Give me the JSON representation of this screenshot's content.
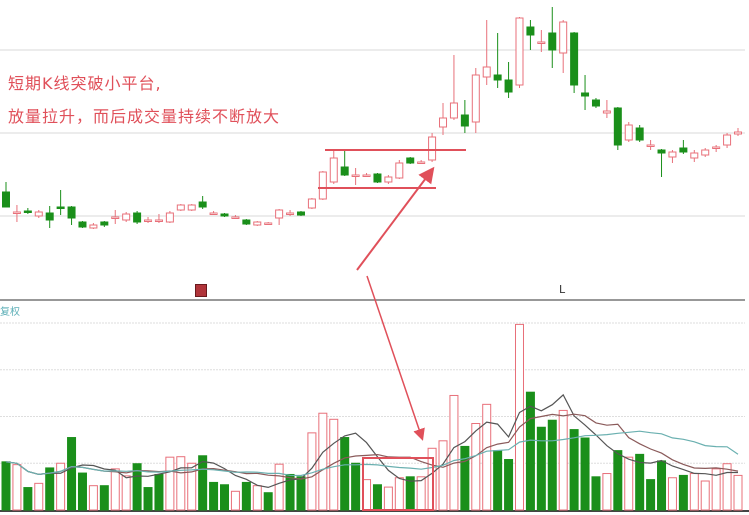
{
  "annotation": {
    "line1": "短期K线突破小平台,",
    "line2": "放量拉升，而后成交量持续不断放大"
  },
  "markers": {
    "right_label": "L"
  },
  "volume_panel_label": "复权",
  "colors": {
    "up": "#e8707a",
    "down": "#1a8f1a",
    "annotation": "#e0505a",
    "ma5": "#555555",
    "ma10": "#8a5a5a",
    "ma20": "#6ab0b0"
  },
  "chart_data": [
    {
      "type": "candlestick",
      "ylim": [
        0,
        30
      ],
      "grid": true,
      "candles": [
        [
          10.8,
          9.3,
          11.8,
          9.3
        ],
        [
          8.7,
          8.8,
          9.5,
          7.8
        ],
        [
          8.9,
          8.8,
          9.2,
          8.6
        ],
        [
          8.4,
          8.8,
          9.0,
          8.2
        ],
        [
          8.7,
          8.0,
          9.4,
          7.2
        ],
        [
          9.3,
          9.2,
          11.0,
          8.5
        ],
        [
          9.3,
          8.2,
          9.4,
          7.5
        ],
        [
          7.8,
          7.3,
          7.9,
          7.2
        ],
        [
          7.2,
          7.5,
          7.7,
          7.1
        ],
        [
          7.8,
          7.5,
          7.9,
          7.3
        ],
        [
          8.3,
          8.3,
          9.0,
          7.6
        ],
        [
          8.0,
          8.6,
          8.8,
          7.8
        ],
        [
          8.7,
          7.8,
          8.9,
          7.6
        ],
        [
          8.0,
          8.0,
          8.3,
          7.7
        ],
        [
          7.9,
          8.0,
          8.6,
          7.7
        ],
        [
          7.8,
          8.7,
          8.9,
          7.7
        ],
        [
          9.0,
          9.5,
          9.6,
          8.9
        ],
        [
          9.0,
          9.5,
          9.6,
          8.9
        ],
        [
          9.8,
          9.3,
          10.4,
          9.1
        ],
        [
          8.7,
          8.7,
          8.9,
          8.5
        ],
        [
          8.6,
          8.4,
          8.7,
          8.3
        ],
        [
          8.3,
          8.3,
          8.5,
          8.1
        ],
        [
          8.0,
          7.6,
          8.1,
          7.5
        ],
        [
          7.5,
          7.8,
          7.9,
          7.4
        ],
        [
          7.7,
          7.7,
          7.8,
          7.5
        ],
        [
          8.2,
          9.0,
          9.1,
          7.5
        ],
        [
          8.7,
          8.7,
          9.0,
          8.4
        ],
        [
          8.8,
          8.5,
          8.9,
          8.4
        ],
        [
          9.2,
          10.1,
          10.2,
          9.1
        ],
        [
          10.1,
          12.8,
          12.9,
          10.0
        ],
        [
          11.8,
          14.2,
          15.0,
          11.6
        ],
        [
          13.3,
          12.5,
          15.0,
          12.4
        ],
        [
          12.5,
          12.5,
          13.2,
          11.5
        ],
        [
          12.5,
          12.5,
          12.7,
          12.3
        ],
        [
          12.6,
          11.8,
          12.7,
          11.7
        ],
        [
          11.8,
          12.3,
          12.5,
          11.6
        ],
        [
          12.2,
          13.7,
          14.0,
          12.1
        ],
        [
          14.2,
          13.7,
          14.3,
          13.6
        ],
        [
          13.8,
          13.8,
          14.0,
          13.6
        ],
        [
          14.0,
          16.3,
          16.7,
          13.8
        ],
        [
          17.3,
          18.2,
          19.7,
          16.5
        ],
        [
          18.2,
          19.7,
          24.5,
          18.0
        ],
        [
          18.5,
          17.4,
          20.0,
          16.7
        ],
        [
          17.8,
          22.5,
          23.2,
          16.7
        ],
        [
          22.3,
          23.3,
          28.0,
          21.5
        ],
        [
          22.5,
          22.0,
          26.7,
          21.2
        ],
        [
          22.0,
          20.8,
          23.8,
          20.2
        ],
        [
          21.5,
          28.2,
          28.3,
          21.2
        ],
        [
          27.3,
          26.5,
          28.0,
          25.0
        ],
        [
          25.8,
          25.8,
          27.0,
          24.8
        ],
        [
          26.7,
          25.0,
          29.3,
          23.2
        ],
        [
          24.7,
          27.8,
          28.0,
          22.7
        ],
        [
          26.7,
          21.5,
          26.8,
          20.7
        ],
        [
          20.7,
          20.4,
          22.5,
          19.0
        ],
        [
          20.0,
          19.4,
          20.2,
          19.2
        ],
        [
          18.7,
          18.9,
          20.0,
          18.2
        ],
        [
          19.2,
          15.5,
          19.3,
          15.0
        ],
        [
          16.0,
          17.5,
          17.8,
          15.8
        ],
        [
          17.2,
          16.0,
          17.5,
          15.8
        ],
        [
          15.5,
          15.5,
          16.0,
          15.0
        ],
        [
          15.0,
          14.7,
          15.1,
          12.3
        ],
        [
          14.3,
          14.8,
          15.0,
          13.7
        ],
        [
          15.2,
          14.8,
          16.0,
          14.6
        ],
        [
          14.2,
          14.7,
          15.0,
          13.8
        ],
        [
          14.5,
          15.0,
          15.2,
          14.3
        ],
        [
          15.3,
          15.3,
          15.5,
          14.8
        ],
        [
          15.5,
          16.5,
          16.7,
          15.2
        ],
        [
          16.6,
          16.8,
          17.2,
          16.4
        ]
      ],
      "platform_top": 15.0,
      "platform_bottom": 11.2
    },
    {
      "type": "bar",
      "ylim": [
        0,
        4
      ],
      "grid": true,
      "moving_averages": [
        5,
        10,
        20
      ],
      "volumes": [
        1.03,
        0.97,
        0.48,
        0.57,
        0.9,
        1.0,
        1.55,
        0.79,
        0.52,
        0.52,
        0.88,
        0.73,
        0.99,
        0.48,
        0.76,
        1.13,
        1.14,
        1.0,
        1.16,
        0.59,
        0.54,
        0.4,
        0.59,
        0.52,
        0.37,
        0.98,
        0.76,
        0.71,
        1.65,
        2.07,
        1.94,
        1.55,
        1.0,
        0.65,
        0.54,
        0.49,
        0.69,
        0.71,
        0.71,
        1.32,
        1.48,
        2.45,
        1.36,
        1.85,
        2.26,
        1.27,
        1.08,
        3.97,
        2.52,
        1.77,
        1.92,
        2.13,
        1.72,
        1.54,
        0.71,
        0.78,
        1.27,
        1.13,
        1.19,
        0.65,
        1.05,
        0.69,
        0.74,
        0.78,
        0.62,
        0.88,
        0.99,
        0.74
      ],
      "up": [
        0,
        1,
        0,
        1,
        0,
        1,
        0,
        0,
        1,
        0,
        1,
        1,
        0,
        0,
        0,
        1,
        1,
        1,
        0,
        0,
        0,
        1,
        0,
        1,
        0,
        1,
        0,
        0,
        1,
        1,
        1,
        0,
        0,
        1,
        0,
        1,
        1,
        0,
        1,
        1,
        1,
        1,
        0,
        1,
        1,
        0,
        0,
        1,
        0,
        0,
        0,
        1,
        0,
        0,
        0,
        1,
        0,
        1,
        0,
        0,
        0,
        1,
        0,
        1,
        1,
        1,
        1,
        1
      ]
    }
  ]
}
